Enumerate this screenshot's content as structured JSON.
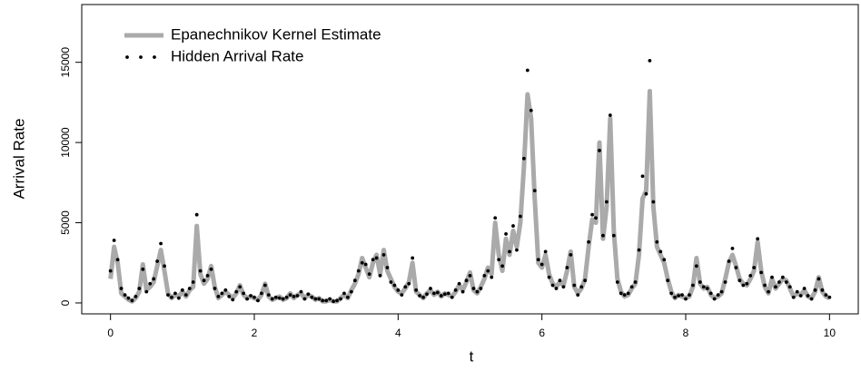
{
  "chart_data": {
    "type": "line",
    "xlabel": "t",
    "ylabel": "Arrival Rate",
    "xlim": [
      -0.4,
      10.4
    ],
    "xticks": [
      0,
      2,
      4,
      6,
      8,
      10
    ],
    "ylim": [
      -680,
      18600
    ],
    "yticks": [
      0,
      5000,
      10000,
      15000
    ],
    "legend": "topleft",
    "x": [
      0,
      0.05,
      0.1,
      0.15,
      0.2,
      0.25,
      0.3,
      0.35,
      0.4,
      0.45,
      0.5,
      0.55,
      0.6,
      0.65,
      0.7,
      0.75,
      0.8,
      0.85,
      0.9,
      0.95,
      1,
      1.05,
      1.1,
      1.15,
      1.2,
      1.25,
      1.3,
      1.35,
      1.4,
      1.45,
      1.5,
      1.55,
      1.6,
      1.65,
      1.7,
      1.75,
      1.8,
      1.85,
      1.9,
      1.95,
      2,
      2.05,
      2.1,
      2.15,
      2.2,
      2.25,
      2.3,
      2.35,
      2.4,
      2.45,
      2.5,
      2.55,
      2.6,
      2.65,
      2.7,
      2.75,
      2.8,
      2.85,
      2.9,
      2.95,
      3,
      3.05,
      3.1,
      3.15,
      3.2,
      3.25,
      3.3,
      3.35,
      3.4,
      3.45,
      3.5,
      3.55,
      3.6,
      3.65,
      3.7,
      3.75,
      3.8,
      3.85,
      3.9,
      3.95,
      4,
      4.05,
      4.1,
      4.15,
      4.2,
      4.25,
      4.3,
      4.35,
      4.4,
      4.45,
      4.5,
      4.55,
      4.6,
      4.65,
      4.7,
      4.75,
      4.8,
      4.85,
      4.9,
      4.95,
      5,
      5.05,
      5.1,
      5.15,
      5.2,
      5.25,
      5.3,
      5.35,
      5.4,
      5.45,
      5.5,
      5.55,
      5.6,
      5.65,
      5.7,
      5.75,
      5.8,
      5.85,
      5.9,
      5.95,
      6,
      6.05,
      6.1,
      6.15,
      6.2,
      6.25,
      6.3,
      6.35,
      6.4,
      6.45,
      6.5,
      6.55,
      6.6,
      6.65,
      6.7,
      6.75,
      6.8,
      6.85,
      6.9,
      6.95,
      7,
      7.05,
      7.1,
      7.15,
      7.2,
      7.25,
      7.3,
      7.35,
      7.4,
      7.45,
      7.5,
      7.55,
      7.6,
      7.65,
      7.7,
      7.75,
      7.8,
      7.85,
      7.9,
      7.95,
      8,
      8.05,
      8.1,
      8.15,
      8.2,
      8.25,
      8.3,
      8.35,
      8.4,
      8.45,
      8.5,
      8.55,
      8.6,
      8.65,
      8.7,
      8.75,
      8.8,
      8.85,
      8.9,
      8.95,
      9,
      9.05,
      9.1,
      9.15,
      9.2,
      9.25,
      9.3,
      9.35,
      9.4,
      9.45,
      9.5,
      9.55,
      9.6,
      9.65,
      9.7,
      9.75,
      9.8,
      9.85,
      9.9,
      9.95,
      10
    ],
    "series": [
      {
        "name": "Epanechnikov Kernel Estimate",
        "color": "#aaaaaa",
        "mark": "line",
        "values": [
          1500,
          3500,
          2500,
          600,
          400,
          200,
          100,
          300,
          700,
          2400,
          800,
          1000,
          1300,
          2300,
          3300,
          2000,
          600,
          300,
          500,
          400,
          700,
          400,
          800,
          1000,
          4800,
          1800,
          1200,
          1500,
          2300,
          1000,
          300,
          500,
          700,
          500,
          300,
          600,
          1100,
          500,
          300,
          400,
          300,
          200,
          500,
          1200,
          400,
          200,
          300,
          400,
          200,
          300,
          600,
          300,
          500,
          600,
          300,
          500,
          400,
          200,
          300,
          100,
          100,
          200,
          100,
          100,
          300,
          500,
          300,
          800,
          1200,
          1800,
          2800,
          2200,
          1600,
          2500,
          3000,
          1800,
          3300,
          2000,
          1500,
          1000,
          700,
          600,
          900,
          1300,
          2500,
          700,
          500,
          300,
          600,
          800,
          500,
          700,
          400,
          600,
          500,
          400,
          700,
          1100,
          800,
          1300,
          1900,
          800,
          600,
          1000,
          1500,
          2200,
          1800,
          5000,
          3000,
          2000,
          4000,
          3000,
          4500,
          3500,
          5000,
          8500,
          13000,
          11500,
          6500,
          2500,
          2200,
          3000,
          1800,
          1200,
          1000,
          1300,
          1100,
          2000,
          3200,
          1000,
          600,
          900,
          1500,
          3500,
          5200,
          5000,
          10000,
          4000,
          6000,
          11500,
          4500,
          1500,
          700,
          400,
          500,
          900,
          1200,
          3000,
          6500,
          7000,
          13200,
          6000,
          3500,
          3000,
          2500,
          1500,
          700,
          300,
          500,
          400,
          300,
          400,
          1000,
          2800,
          1200,
          900,
          1000,
          500,
          300,
          400,
          600,
          1500,
          2500,
          3000,
          2300,
          1500,
          1200,
          1100,
          1500,
          2000,
          3800,
          2000,
          1000,
          600,
          1500,
          900,
          1200,
          1500,
          1400,
          900,
          400,
          600,
          500,
          800,
          400,
          300,
          700,
          1600,
          700,
          400,
          300
        ]
      },
      {
        "name": "Hidden Arrival Rate",
        "color": "#000000",
        "mark": "points",
        "values": [
          2000,
          3900,
          2700,
          900,
          500,
          300,
          150,
          400,
          900,
          2100,
          700,
          1200,
          1500,
          2600,
          3700,
          2300,
          500,
          350,
          600,
          300,
          800,
          500,
          900,
          1300,
          5500,
          2000,
          1400,
          1700,
          2100,
          900,
          400,
          600,
          800,
          400,
          200,
          700,
          1000,
          600,
          250,
          450,
          350,
          150,
          600,
          1100,
          500,
          250,
          350,
          300,
          250,
          350,
          500,
          400,
          450,
          700,
          250,
          550,
          350,
          250,
          250,
          150,
          150,
          250,
          100,
          150,
          250,
          600,
          350,
          700,
          1400,
          2000,
          2500,
          2400,
          1800,
          2700,
          2800,
          1700,
          3000,
          2200,
          1300,
          1100,
          800,
          500,
          1000,
          1200,
          2800,
          800,
          450,
          350,
          550,
          900,
          600,
          650,
          450,
          550,
          600,
          350,
          800,
          1200,
          700,
          1400,
          1700,
          900,
          700,
          900,
          1700,
          2000,
          1600,
          5300,
          2700,
          2300,
          4300,
          3200,
          4800,
          3300,
          5400,
          9000,
          14500,
          12000,
          7000,
          2700,
          2400,
          3200,
          1600,
          1100,
          900,
          1400,
          1000,
          2200,
          3000,
          1100,
          500,
          1000,
          1400,
          3800,
          5500,
          5300,
          9500,
          4200,
          6300,
          11700,
          4200,
          1300,
          600,
          500,
          600,
          1000,
          1300,
          3300,
          7900,
          6800,
          15100,
          6300,
          3800,
          3200,
          2700,
          1400,
          600,
          350,
          450,
          500,
          250,
          500,
          1100,
          2300,
          1300,
          1000,
          900,
          600,
          250,
          500,
          700,
          1300,
          2600,
          3400,
          2200,
          1400,
          1100,
          1200,
          1700,
          2200,
          4000,
          1900,
          1100,
          700,
          1600,
          1000,
          1300,
          1600,
          1300,
          1000,
          350,
          700,
          450,
          900,
          450,
          250,
          800,
          1500,
          800,
          500,
          350
        ]
      }
    ]
  }
}
